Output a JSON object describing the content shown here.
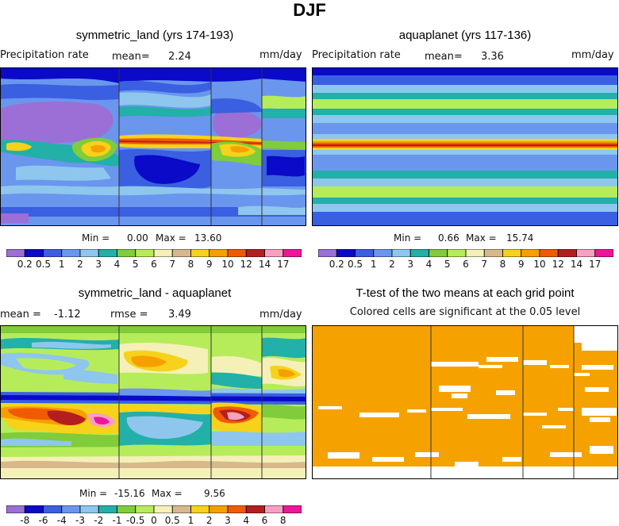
{
  "figure": {
    "title": "DJF"
  },
  "chart_data": [
    {
      "type": "heatmap",
      "title": "symmetric_land (yrs 174-193)",
      "variable_label": "Precipitation rate",
      "stat_label": "mean=",
      "mean": "2.24",
      "units": "mm/day",
      "min_label": "Min =",
      "min": "0.00",
      "max_label": "Max =",
      "max": "13.60",
      "colorbar_ticks": [
        "0.2",
        "0.5",
        "1",
        "2",
        "3",
        "4",
        "5",
        "6",
        "7",
        "8",
        "9",
        "10",
        "12",
        "14",
        "17"
      ]
    },
    {
      "type": "heatmap",
      "title": "aquaplanet (yrs 117-136)",
      "variable_label": "Precipitation rate",
      "stat_label": "mean=",
      "mean": "3.36",
      "units": "mm/day",
      "min_label": "Min =",
      "min": "0.66",
      "max_label": "Max =",
      "max": "15.74",
      "colorbar_ticks": [
        "0.2",
        "0.5",
        "1",
        "2",
        "3",
        "4",
        "5",
        "6",
        "7",
        "8",
        "9",
        "10",
        "12",
        "14",
        "17"
      ]
    },
    {
      "type": "heatmap",
      "title": "symmetric_land - aquaplanet",
      "stat_label": "mean =",
      "mean": "-1.12",
      "rmse_label": "rmse =",
      "rmse": "3.49",
      "units": "mm/day",
      "min_label": "Min =",
      "min": "-15.16",
      "max_label": "Max =",
      "max": "9.56",
      "colorbar_ticks": [
        "-8",
        "-6",
        "-4",
        "-3",
        "-2",
        "-1",
        "-0.5",
        "0",
        "0.5",
        "1",
        "2",
        "3",
        "4",
        "6",
        "8"
      ]
    },
    {
      "type": "heatmap",
      "title": "T-test of the two means at each grid point",
      "subtitle": "Colored cells are significant at the 0.05 level"
    }
  ],
  "colors": {
    "precip_scale": [
      "#9b6fd6",
      "#0a0ac8",
      "#3a5fe0",
      "#6a96ee",
      "#8ec6ee",
      "#22b0a8",
      "#80cc3a",
      "#b6ec5a",
      "#f4f0b8",
      "#d8b88a",
      "#f6d21a",
      "#f6a000",
      "#f05a00",
      "#b41e1e",
      "#f7a0c0",
      "#f0149a"
    ],
    "diff_scale": [
      "#9b6fd6",
      "#0a0ac8",
      "#3a5fe0",
      "#6a96ee",
      "#8ec6ee",
      "#22b0a8",
      "#80cc3a",
      "#b6ec5a",
      "#f4f0b8",
      "#d8b88a",
      "#f6d21a",
      "#f6a000",
      "#f05a00",
      "#b41e1e",
      "#f7a0c0",
      "#f0149a"
    ],
    "significant": "#f5a200"
  }
}
